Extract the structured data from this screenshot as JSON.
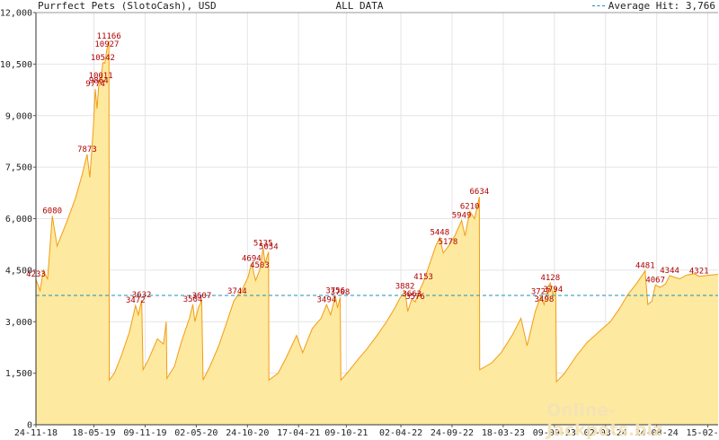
{
  "chart_data": {
    "type": "area",
    "title": "Purrfect Pets (SlotoCash), USD",
    "subtitle": "ALL DATA",
    "legend": {
      "label": "Average Hit: 3,766",
      "placement": "top-right"
    },
    "reference_line": {
      "value": 3766,
      "color": "#1f8fb3"
    },
    "ylim": [
      0,
      12000
    ],
    "y_ticks": [
      0,
      1500,
      3000,
      4500,
      6000,
      7500,
      9000,
      10500,
      12000
    ],
    "y_tick_labels": [
      "0",
      "1,500",
      "3,000",
      "4,500",
      "6,000",
      "7,500",
      "9,000",
      "10,500",
      "12,000"
    ],
    "xlim": [
      0,
      100
    ],
    "x_ticks": [
      0,
      8.5,
      16,
      23.5,
      31,
      38.5,
      45.5,
      53.5,
      61,
      68.5,
      76,
      83.5,
      91,
      98.5
    ],
    "x_tick_labels": [
      "24-11-18",
      "18-05-19",
      "09-11-19",
      "02-05-20",
      "24-10-20",
      "17-04-21",
      "09-10-21",
      "02-04-22",
      "24-09-22",
      "18-03-23",
      "09-09-23",
      "02-03-24",
      "24-08-24",
      "15-02-25"
    ],
    "series": [
      {
        "values": [
          [
            0,
            4233
          ],
          [
            0.6,
            3900
          ],
          [
            1.1,
            4500
          ],
          [
            1.7,
            4233
          ],
          [
            2.4,
            6080
          ],
          [
            3.1,
            5200
          ],
          [
            4.5,
            5900
          ],
          [
            5.8,
            6600
          ],
          [
            6.8,
            7300
          ],
          [
            7.5,
            7873
          ],
          [
            7.9,
            7200
          ],
          [
            8.4,
            8600
          ],
          [
            8.7,
            9774
          ],
          [
            8.95,
            9200
          ],
          [
            9.2,
            9864
          ],
          [
            9.5,
            10011
          ],
          [
            9.8,
            10542
          ],
          [
            10.1,
            10527
          ],
          [
            10.4,
            10927
          ],
          [
            10.7,
            11166
          ],
          [
            10.75,
            1300
          ],
          [
            11.5,
            1500
          ],
          [
            12.5,
            2000
          ],
          [
            13.7,
            2700
          ],
          [
            14.6,
            3472
          ],
          [
            15.0,
            3200
          ],
          [
            15.5,
            3632
          ],
          [
            15.7,
            1600
          ],
          [
            16.5,
            1900
          ],
          [
            17.8,
            2500
          ],
          [
            18.7,
            2350
          ],
          [
            19.1,
            3000
          ],
          [
            19.2,
            1350
          ],
          [
            20.3,
            1700
          ],
          [
            21.3,
            2400
          ],
          [
            22.5,
            3100
          ],
          [
            23.0,
            3504
          ],
          [
            23.3,
            3000
          ],
          [
            23.8,
            3400
          ],
          [
            24.3,
            3607
          ],
          [
            24.5,
            1300
          ],
          [
            25.5,
            1700
          ],
          [
            26.8,
            2300
          ],
          [
            28.0,
            3000
          ],
          [
            29.0,
            3600
          ],
          [
            29.5,
            3744
          ],
          [
            30.4,
            4000
          ],
          [
            31.1,
            4300
          ],
          [
            31.6,
            4694
          ],
          [
            32.2,
            4200
          ],
          [
            32.8,
            4503
          ],
          [
            33.3,
            5135
          ],
          [
            33.6,
            4700
          ],
          [
            34.1,
            5034
          ],
          [
            34.15,
            1300
          ],
          [
            35.5,
            1500
          ],
          [
            36.8,
            2000
          ],
          [
            38.2,
            2600
          ],
          [
            39.1,
            2100
          ],
          [
            40.5,
            2800
          ],
          [
            41.8,
            3100
          ],
          [
            42.6,
            3494
          ],
          [
            43.2,
            3200
          ],
          [
            43.9,
            3756
          ],
          [
            44.2,
            3400
          ],
          [
            44.6,
            3708
          ],
          [
            44.7,
            1300
          ],
          [
            45.6,
            1500
          ],
          [
            47.2,
            1900
          ],
          [
            48.5,
            2200
          ],
          [
            50.0,
            2600
          ],
          [
            51.4,
            3000
          ],
          [
            52.6,
            3400
          ],
          [
            53.4,
            3700
          ],
          [
            54.1,
            3882
          ],
          [
            54.5,
            3300
          ],
          [
            55.1,
            3663
          ],
          [
            55.6,
            3576
          ],
          [
            56.2,
            3900
          ],
          [
            56.8,
            4153
          ],
          [
            57.4,
            4500
          ],
          [
            58.6,
            5200
          ],
          [
            59.2,
            5448
          ],
          [
            59.7,
            5000
          ],
          [
            60.4,
            5178
          ],
          [
            61.4,
            5500
          ],
          [
            62.4,
            5949
          ],
          [
            62.9,
            5500
          ],
          [
            63.6,
            6210
          ],
          [
            64.3,
            6000
          ],
          [
            65.0,
            6634
          ],
          [
            65.05,
            1600
          ],
          [
            66.8,
            1800
          ],
          [
            68.2,
            2100
          ],
          [
            69.8,
            2600
          ],
          [
            71.1,
            3100
          ],
          [
            72.0,
            2300
          ],
          [
            73.2,
            3300
          ],
          [
            74.0,
            3727
          ],
          [
            74.5,
            3498
          ],
          [
            75.0,
            4000
          ],
          [
            75.4,
            4128
          ],
          [
            75.8,
            3794
          ],
          [
            76.2,
            4000
          ],
          [
            76.3,
            1250
          ],
          [
            77.5,
            1500
          ],
          [
            79.2,
            2000
          ],
          [
            80.8,
            2400
          ],
          [
            82.5,
            2700
          ],
          [
            84.2,
            3000
          ],
          [
            85.6,
            3400
          ],
          [
            86.8,
            3800
          ],
          [
            88.0,
            4100
          ],
          [
            89.3,
            4481
          ],
          [
            89.7,
            3500
          ],
          [
            90.3,
            3600
          ],
          [
            90.8,
            4067
          ],
          [
            91.5,
            4000
          ],
          [
            92.3,
            4100
          ],
          [
            92.9,
            4344
          ],
          [
            93.5,
            4300
          ],
          [
            94.4,
            4250
          ],
          [
            95.3,
            4350
          ],
          [
            96.5,
            4400
          ],
          [
            97.2,
            4321
          ],
          [
            98.5,
            4350
          ],
          [
            100,
            4380
          ]
        ]
      }
    ],
    "data_labels": [
      {
        "x": 0,
        "y": 4233,
        "text": "4233"
      },
      {
        "x": 2.4,
        "y": 6080,
        "text": "6080"
      },
      {
        "x": 7.5,
        "y": 7873,
        "text": "7873"
      },
      {
        "x": 8.7,
        "y": 9774,
        "text": "9774"
      },
      {
        "x": 9.2,
        "y": 9864,
        "text": "9864"
      },
      {
        "x": 9.5,
        "y": 10011,
        "text": "10011"
      },
      {
        "x": 9.8,
        "y": 10542,
        "text": "10542"
      },
      {
        "x": 10.4,
        "y": 10927,
        "text": "10927"
      },
      {
        "x": 10.7,
        "y": 11166,
        "text": "11166"
      },
      {
        "x": 14.6,
        "y": 3472,
        "text": "3472"
      },
      {
        "x": 15.5,
        "y": 3632,
        "text": "3632"
      },
      {
        "x": 23.0,
        "y": 3504,
        "text": "3504"
      },
      {
        "x": 24.3,
        "y": 3607,
        "text": "3607"
      },
      {
        "x": 29.5,
        "y": 3744,
        "text": "3744"
      },
      {
        "x": 31.6,
        "y": 4694,
        "text": "4694"
      },
      {
        "x": 32.8,
        "y": 4503,
        "text": "4503"
      },
      {
        "x": 33.3,
        "y": 5135,
        "text": "5135"
      },
      {
        "x": 34.1,
        "y": 5034,
        "text": "5034"
      },
      {
        "x": 42.6,
        "y": 3494,
        "text": "3494"
      },
      {
        "x": 43.9,
        "y": 3756,
        "text": "3756"
      },
      {
        "x": 44.6,
        "y": 3708,
        "text": "3708"
      },
      {
        "x": 54.1,
        "y": 3882,
        "text": "3882"
      },
      {
        "x": 55.1,
        "y": 3663,
        "text": "3663"
      },
      {
        "x": 55.6,
        "y": 3576,
        "text": "3576"
      },
      {
        "x": 56.8,
        "y": 4153,
        "text": "4153"
      },
      {
        "x": 59.2,
        "y": 5448,
        "text": "5448"
      },
      {
        "x": 60.4,
        "y": 5178,
        "text": "5178"
      },
      {
        "x": 62.4,
        "y": 5949,
        "text": "5949"
      },
      {
        "x": 63.6,
        "y": 6210,
        "text": "6210"
      },
      {
        "x": 65.0,
        "y": 6634,
        "text": "6634"
      },
      {
        "x": 74.0,
        "y": 3727,
        "text": "3727"
      },
      {
        "x": 74.5,
        "y": 3498,
        "text": "3498"
      },
      {
        "x": 75.4,
        "y": 4128,
        "text": "4128"
      },
      {
        "x": 75.8,
        "y": 3794,
        "text": "3794"
      },
      {
        "x": 89.3,
        "y": 4481,
        "text": "4481"
      },
      {
        "x": 90.8,
        "y": 4067,
        "text": "4067"
      },
      {
        "x": 92.9,
        "y": 4344,
        "text": "4344"
      },
      {
        "x": 97.2,
        "y": 4321,
        "text": "4321"
      }
    ],
    "colors": {
      "fill": "#fde9a0",
      "line": "#f39c12",
      "grid": "#e4e4e4",
      "labels": "#b00000"
    },
    "grid": true
  },
  "watermark": "Online-Jackpots.biz"
}
